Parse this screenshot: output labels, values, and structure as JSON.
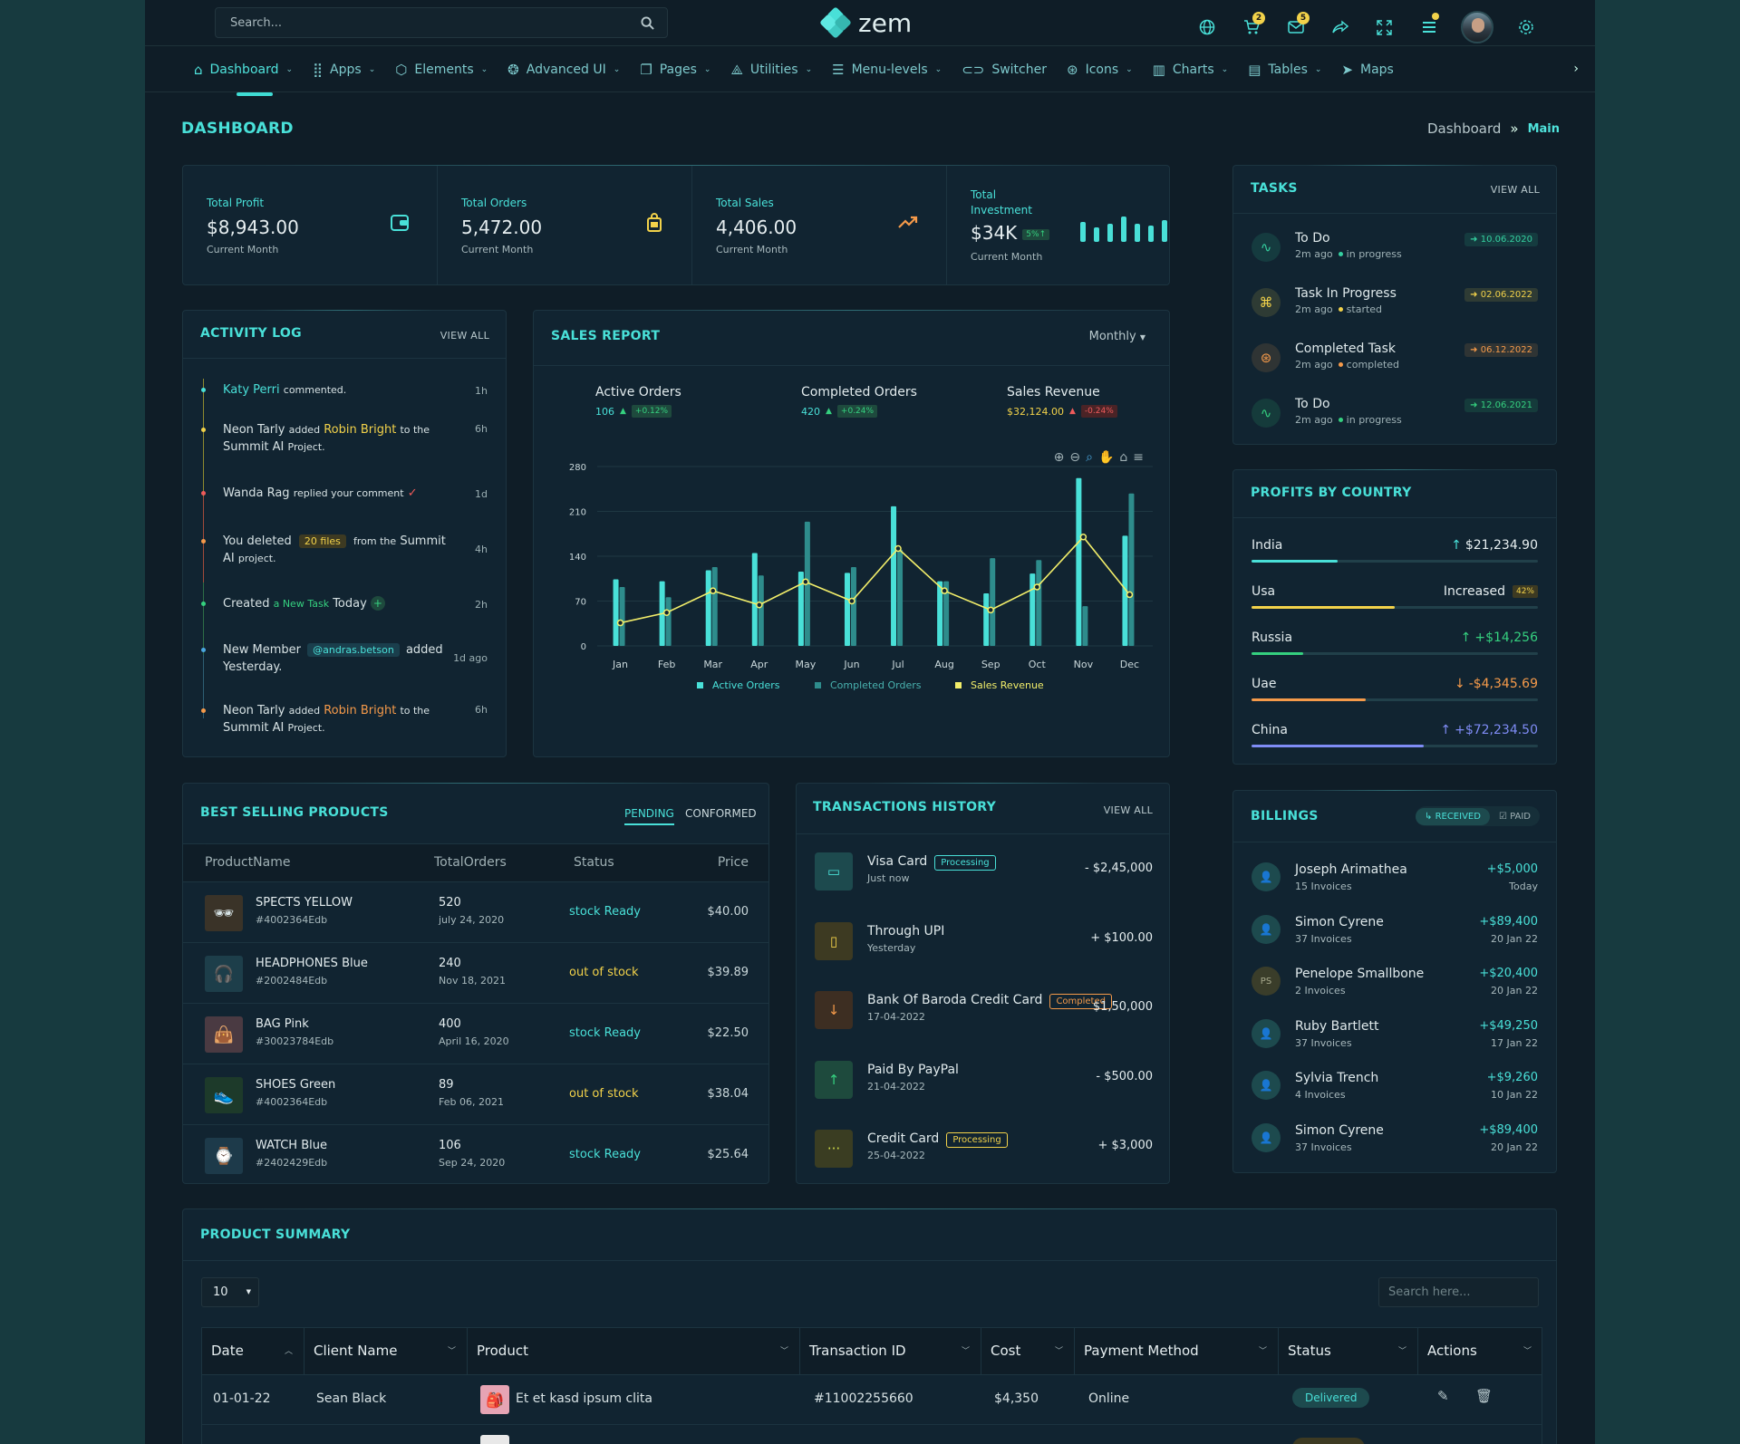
{
  "colors": {
    "accent": "#49e0d8",
    "yellow": "#f2d24a",
    "orange": "#f59a4a",
    "red": "#ef5b5b",
    "green": "#35d07f"
  },
  "header": {
    "search_placeholder": "Search...",
    "logo": "zem",
    "cart_badge": "2",
    "mail_badge": "5"
  },
  "nav": {
    "items": [
      {
        "label": "Dashboard",
        "icon": "home-icon",
        "chev": true
      },
      {
        "label": "Apps",
        "icon": "grid-icon",
        "chev": true
      },
      {
        "label": "Elements",
        "icon": "cube-icon",
        "chev": true
      },
      {
        "label": "Advanced UI",
        "icon": "circles-icon",
        "chev": true
      },
      {
        "label": "Pages",
        "icon": "pages-icon",
        "chev": true
      },
      {
        "label": "Utilities",
        "icon": "utilities-icon",
        "chev": true
      },
      {
        "label": "Menu-levels",
        "icon": "menu-icon",
        "chev": true
      },
      {
        "label": "Switcher",
        "icon": "toggle-icon",
        "chev": false
      },
      {
        "label": "Icons",
        "icon": "globe-icon",
        "chev": true
      },
      {
        "label": "Charts",
        "icon": "chart-icon",
        "chev": true
      },
      {
        "label": "Tables",
        "icon": "table-icon",
        "chev": true
      },
      {
        "label": "Maps",
        "icon": "map-icon",
        "chev": false
      }
    ]
  },
  "page": {
    "title": "DASHBOARD",
    "crumb1": "Dashboard",
    "crumb_sep": "»",
    "crumb2": "Main"
  },
  "stats": [
    {
      "label": "Total Profit",
      "value": "$8,943.00",
      "sub": "Current Month"
    },
    {
      "label": "Total Orders",
      "value": "5,472.00",
      "sub": "Current Month"
    },
    {
      "label": "Total Sales",
      "value": "4,406.00",
      "sub": "Current Month"
    },
    {
      "label": "Total Investment",
      "value": "$34K",
      "badge": "5%↑",
      "sub": "Current Month"
    }
  ],
  "activity": {
    "title": "ACTIVITY LOG",
    "view_all": "VIEW ALL",
    "items": [
      {
        "a": "Katy Perri",
        "b": "commented.",
        "time": "1h"
      },
      {
        "a": "Neon Tarly",
        "b": "added",
        "c": "Robin Bright",
        "d": "to the",
        "e": "Summit AI",
        "f": "Project.",
        "time": "6h"
      },
      {
        "a": "Wanda Rag",
        "b": "replied your comment",
        "time": "1d"
      },
      {
        "a": "You deleted",
        "b": "20 files",
        "c": "from the",
        "d": "Summit",
        "e": "AI",
        "f": "project.",
        "time": "4h"
      },
      {
        "a": "Created",
        "b": "a New Task",
        "c": "Today",
        "time": "2h"
      },
      {
        "a": "New Member",
        "b": "@andras.betson",
        "c": "added",
        "d": "Yesterday.",
        "time": "1d ago"
      },
      {
        "a": "Neon Tarly",
        "b": "added",
        "c": "Robin Bright",
        "d": "to the",
        "e": "Summit AI",
        "f": "Project.",
        "time": "6h"
      }
    ]
  },
  "sales": {
    "title": "SALES REPORT",
    "period": "Monthly",
    "kpis": [
      {
        "label": "Active Orders",
        "value": "106",
        "change": "+0.12%"
      },
      {
        "label": "Completed Orders",
        "value": "420",
        "change": "+0.24%"
      },
      {
        "label": "Sales Revenue",
        "value": "$32,124.00",
        "change": "-0.24%"
      }
    ]
  },
  "chart_data": {
    "type": "bar",
    "categories": [
      "Jan",
      "Feb",
      "Mar",
      "Apr",
      "May",
      "Jun",
      "Jul",
      "Aug",
      "Sep",
      "Oct",
      "Nov",
      "Dec"
    ],
    "yticks": [
      "280",
      "210",
      "140",
      "70",
      "0"
    ],
    "ylim": [
      0,
      280
    ],
    "series": [
      {
        "name": "Active Orders",
        "type": "bar",
        "color": "#49e0d8",
        "values": [
          104,
          101,
          118,
          145,
          116,
          114,
          218,
          101,
          82,
          113,
          262,
          172
        ]
      },
      {
        "name": "Completed Orders",
        "type": "bar",
        "color": "#2e8c8c",
        "values": [
          92,
          76,
          123,
          110,
          194,
          123,
          150,
          101,
          137,
          134,
          62,
          238
        ]
      },
      {
        "name": "Sales Revenue",
        "type": "line",
        "color": "#f2ee6a",
        "values": [
          36,
          52,
          86,
          64,
          100,
          70,
          152,
          86,
          56,
          92,
          170,
          80
        ]
      }
    ],
    "grid": true,
    "legend": "bottom"
  },
  "tasks": {
    "title": "TASKS",
    "view_all": "VIEW ALL",
    "items": [
      {
        "title": "To Do",
        "time": "2m ago",
        "status": "in progress",
        "date": "10.06.2020",
        "color": "#35d0a0"
      },
      {
        "title": "Task In Progress",
        "time": "2m ago",
        "status": "started",
        "date": "02.06.2022",
        "color": "#f2d24a"
      },
      {
        "title": "Completed Task",
        "time": "2m ago",
        "status": "completed",
        "date": "06.12.2022",
        "color": "#f59a4a"
      },
      {
        "title": "To Do",
        "time": "2m ago",
        "status": "in progress",
        "date": "12.06.2021",
        "color": "#35d07f"
      }
    ]
  },
  "profits": {
    "title": "PROFITS BY COUNTRY",
    "items": [
      {
        "name": "India",
        "value": "$21,234.90",
        "arrow": "↑",
        "color": "#49e0d8",
        "fill": 0.3
      },
      {
        "name": "Usa",
        "value": "Increased",
        "badge": "42%",
        "color": "#f2d24a",
        "fill": 0.5
      },
      {
        "name": "Russia",
        "value": "+$14,256",
        "arrow": "↑",
        "color": "#35d07f",
        "fill": 0.18
      },
      {
        "name": "Uae",
        "value": "-$4,345.69",
        "arrow": "↓",
        "color": "#f59a4a",
        "fill": 0.4
      },
      {
        "name": "China",
        "value": "+$72,234.50",
        "arrow": "↑",
        "color": "#7f8cf5",
        "fill": 0.6
      }
    ]
  },
  "best": {
    "title": "BEST SELLING PRODUCTS",
    "tab1": "PENDING",
    "tab2": "CONFORMED",
    "headers": [
      "ProductName",
      "TotalOrders",
      "Status",
      "Price"
    ],
    "rows": [
      {
        "name": "SPECTS YELLOW",
        "id": "#4002364Edb",
        "orders": "520",
        "date": "july 24, 2020",
        "status": "stock Ready",
        "price": "$40.00",
        "icon": "glasses-icon",
        "emoji": "🕶"
      },
      {
        "name": "HEADPHONES Blue",
        "id": "#2002484Edb",
        "orders": "240",
        "date": "Nov 18, 2021",
        "status": "out of stock",
        "price": "$39.89",
        "icon": "headphones-icon",
        "emoji": "🎧"
      },
      {
        "name": "BAG Pink",
        "id": "#30023784Edb",
        "orders": "400",
        "date": "April 16, 2020",
        "status": "stock Ready",
        "price": "$22.50",
        "icon": "bag-icon",
        "emoji": "👜"
      },
      {
        "name": "SHOES Green",
        "id": "#4002364Edb",
        "orders": "89",
        "date": "Feb 06, 2021",
        "status": "out of stock",
        "price": "$38.04",
        "icon": "shoe-icon",
        "emoji": "👟"
      },
      {
        "name": "WATCH Blue",
        "id": "#2402429Edb",
        "orders": "106",
        "date": "Sep 24, 2020",
        "status": "stock Ready",
        "price": "$25.64",
        "icon": "watch-icon",
        "emoji": "⌚"
      }
    ]
  },
  "trans": {
    "title": "TRANSACTIONS HISTORY",
    "view_all": "VIEW ALL",
    "items": [
      {
        "name": "Visa Card",
        "sub": "Just now",
        "amount": "- $2,45,000",
        "tag": "Processing"
      },
      {
        "name": "Through UPI",
        "sub": "Yesterday",
        "amount": "+ $100.00"
      },
      {
        "name": "Bank Of Baroda Credit Card",
        "sub": "17-04-2022",
        "amount": "$1,50,000",
        "tag": "Completed"
      },
      {
        "name": "Paid By PayPal",
        "sub": "21-04-2022",
        "amount": "- $500.00"
      },
      {
        "name": "Credit Card",
        "sub": "25-04-2022",
        "amount": "+ $3,000",
        "tag": "Processing"
      }
    ]
  },
  "billings": {
    "title": "BILLINGS",
    "tab1": "RECEIVED",
    "tab2": "PAID",
    "items": [
      {
        "name": "Joseph Arimathea",
        "sub": "15 Invoices",
        "amount": "+$5,000",
        "date": "Today"
      },
      {
        "name": "Simon Cyrene",
        "sub": "37 Invoices",
        "amount": "+$89,400",
        "date": "20 Jan 22"
      },
      {
        "name": "Penelope Smallbone",
        "sub": "2 Invoices",
        "amount": "+$20,400",
        "date": "20 Jan 22",
        "initials": "PS"
      },
      {
        "name": "Ruby Bartlett",
        "sub": "37 Invoices",
        "amount": "+$49,250",
        "date": "17 Jan 22"
      },
      {
        "name": "Sylvia Trench",
        "sub": "4 Invoices",
        "amount": "+$9,260",
        "date": "10 Jan 22"
      },
      {
        "name": "Simon Cyrene",
        "sub": "37 Invoices",
        "amount": "+$89,400",
        "date": "20 Jan 22"
      }
    ]
  },
  "summary": {
    "title": "PRODUCT SUMMARY",
    "page_size": "10",
    "search_placeholder": "Search here...",
    "headers": [
      "Date",
      "Client Name",
      "Product",
      "Transaction ID",
      "Cost",
      "Payment Method",
      "Status",
      "Actions"
    ],
    "row": {
      "date": "01-01-22",
      "client": "Sean Black",
      "product": "Et et kasd ipsum clita",
      "txid": "#11002255660",
      "cost": "$4,350",
      "method": "Online",
      "status": "Delivered"
    }
  }
}
